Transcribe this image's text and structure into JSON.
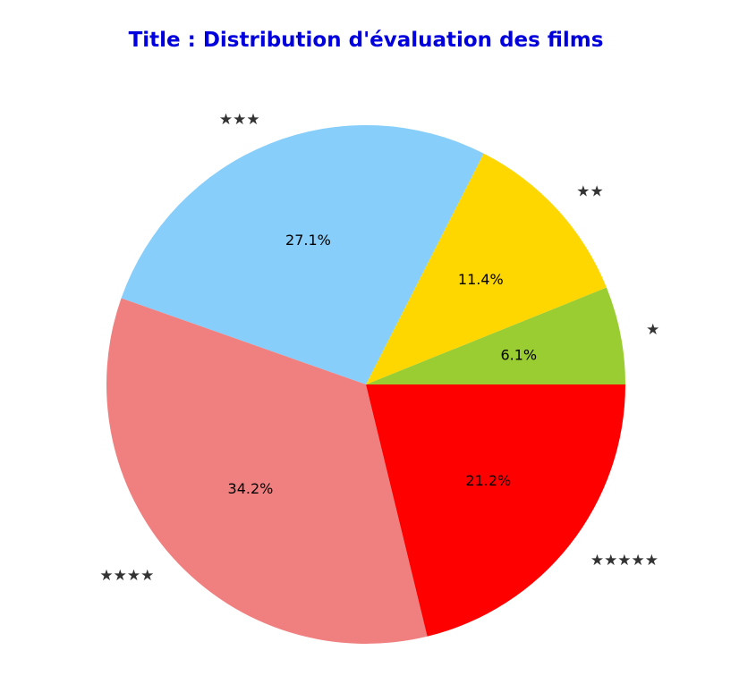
{
  "chart_data": {
    "type": "pie",
    "title": "Title : Distribution d'évaluation des films",
    "title_color": "#0000dd",
    "start_angle_deg": 0,
    "direction": "counterclockwise",
    "slices": [
      {
        "label": "★",
        "value": 6.1,
        "pct_label": "6.1%",
        "color": "#9acd32"
      },
      {
        "label": "★★",
        "value": 11.4,
        "pct_label": "11.4%",
        "color": "#ffd700"
      },
      {
        "label": "★★★",
        "value": 27.1,
        "pct_label": "27.1%",
        "color": "#87cefa"
      },
      {
        "label": "★★★★",
        "value": 34.2,
        "pct_label": "34.2%",
        "color": "#f08080"
      },
      {
        "label": "★★★★★",
        "value": 21.2,
        "pct_label": "21.2%",
        "color": "#ff0000"
      }
    ]
  }
}
